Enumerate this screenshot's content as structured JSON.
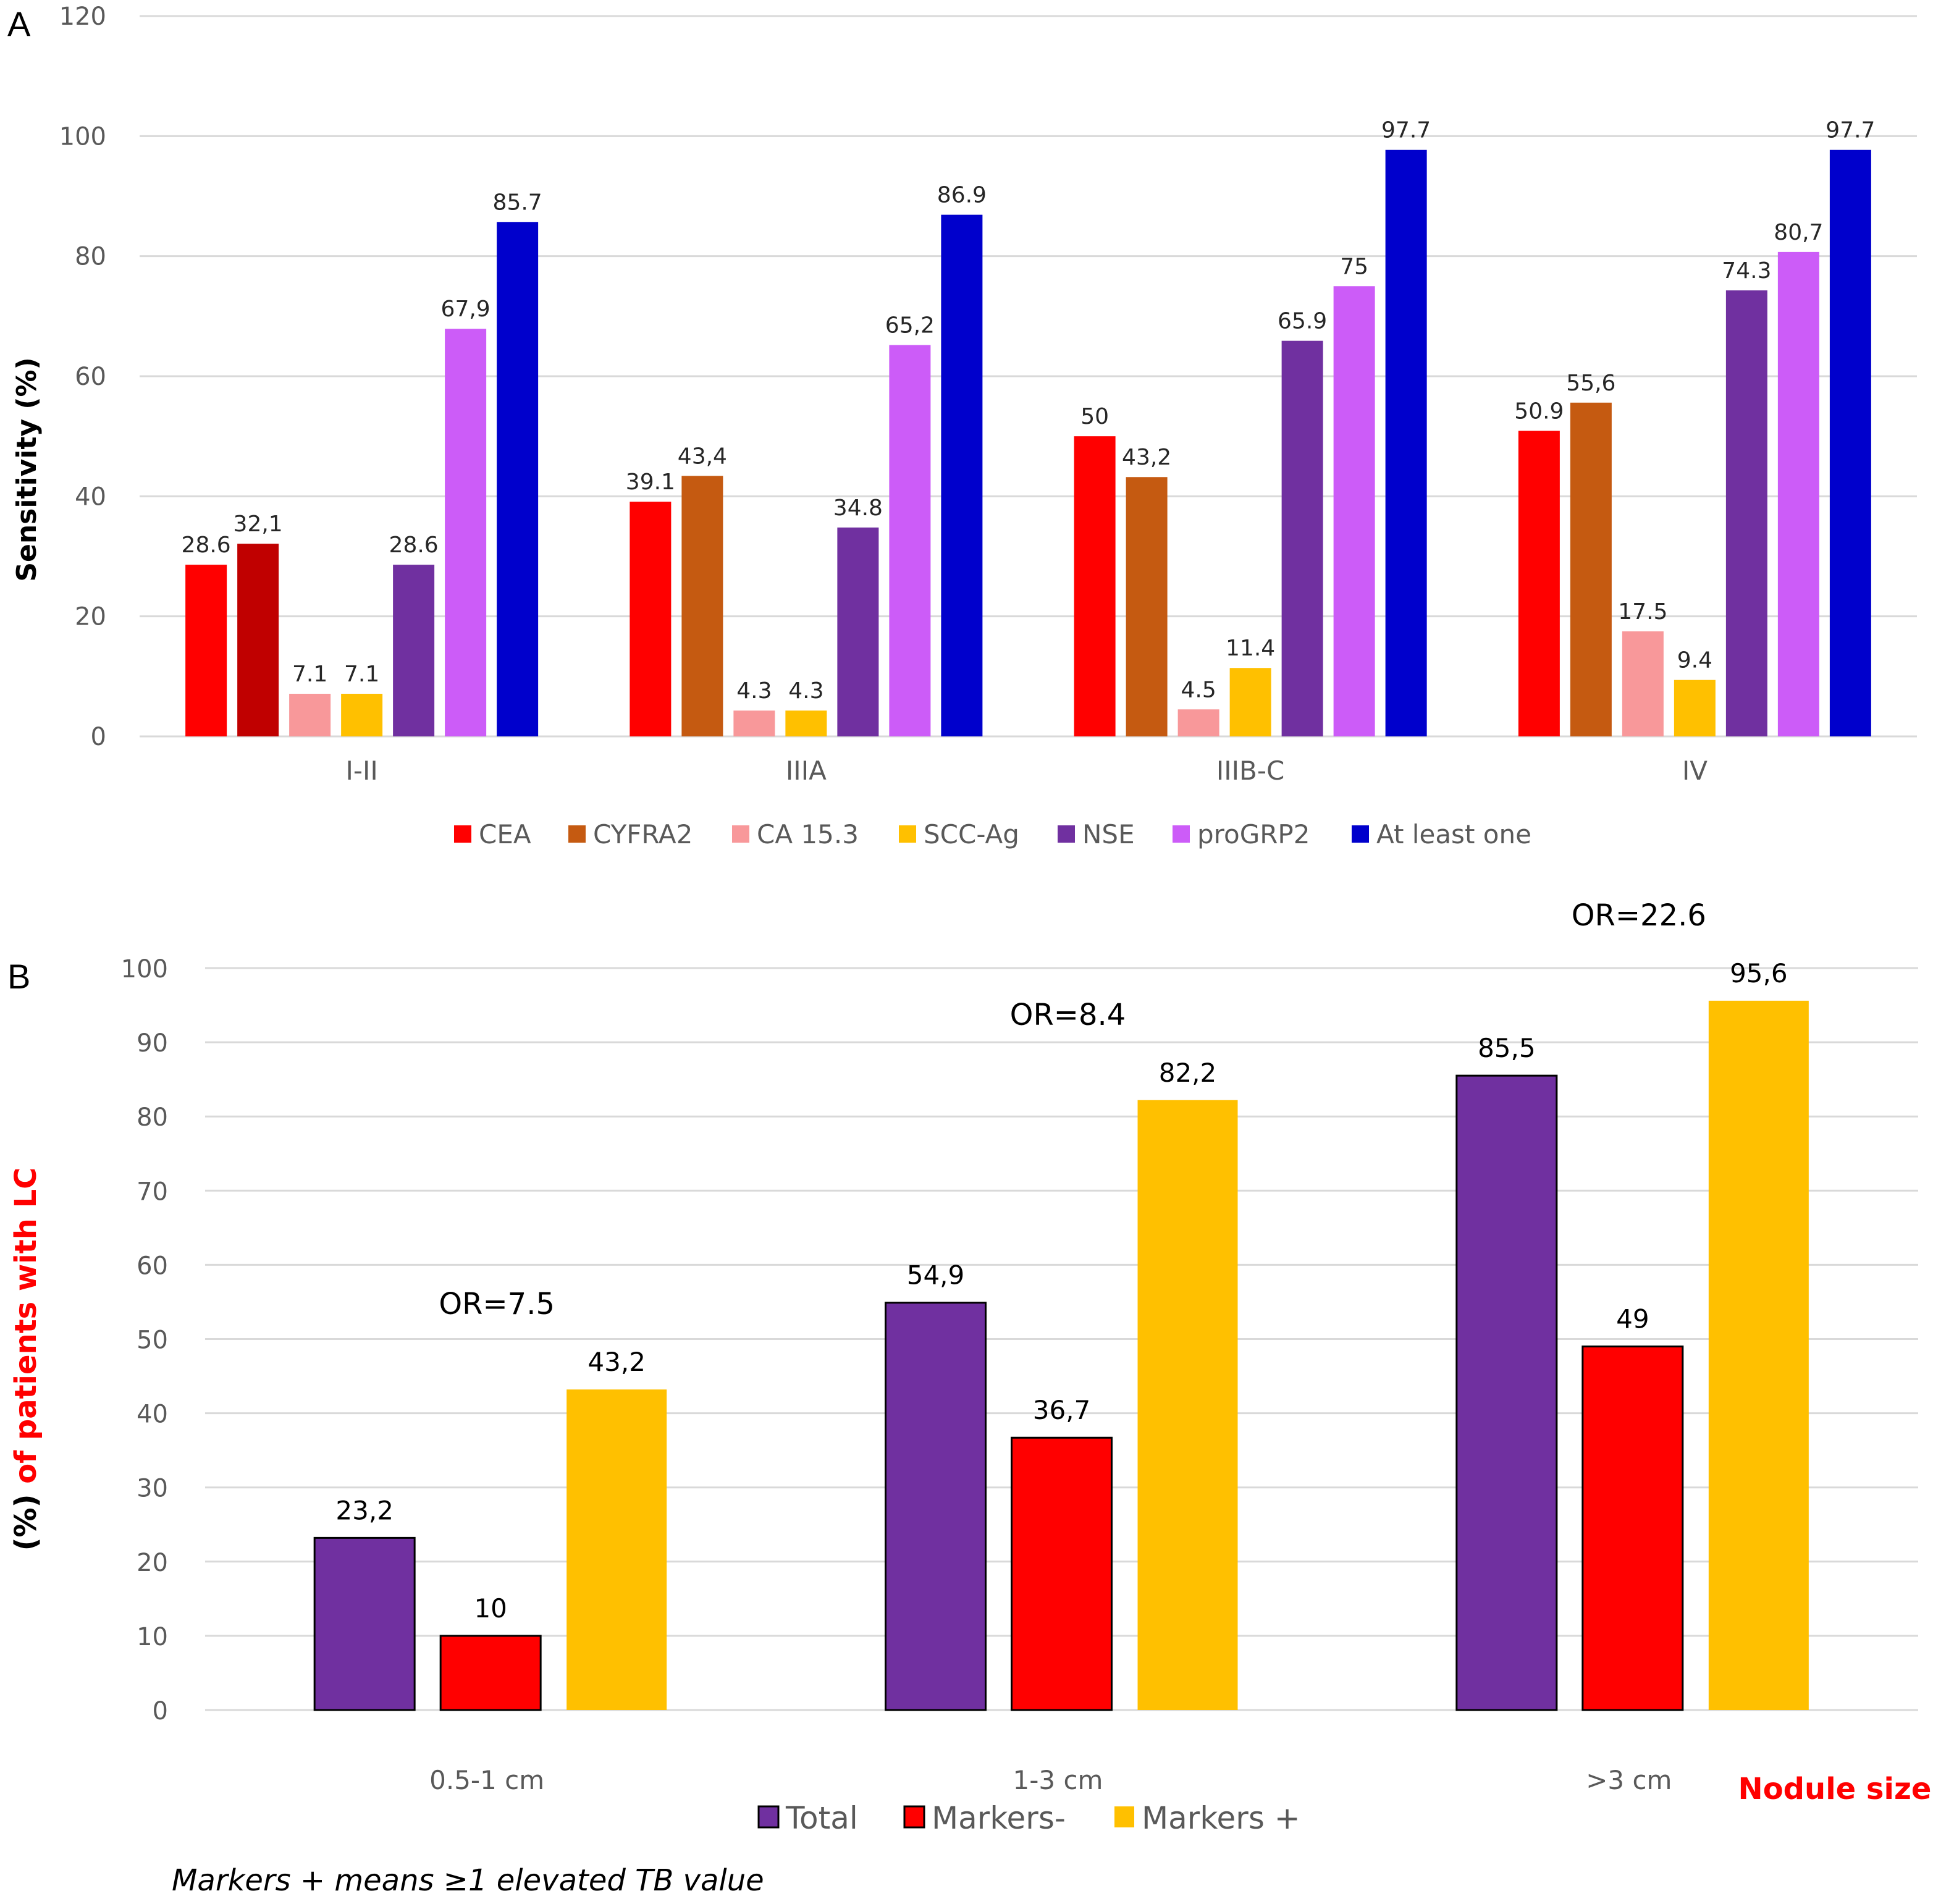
{
  "chart_data": [
    {
      "panel": "A",
      "type": "bar",
      "title": "",
      "xlabel": "",
      "ylabel": "Sensitivity (%)",
      "ylim": [
        0,
        120
      ],
      "yticks": [
        0,
        20,
        40,
        60,
        80,
        100,
        120
      ],
      "grid": true,
      "legend_position": "bottom",
      "categories": [
        "I-II",
        "IIIA",
        "IIIB-C",
        "IV"
      ],
      "series": [
        {
          "name": "CEA",
          "color": "#FF0000",
          "values": [
            28.6,
            39.1,
            50,
            50.9
          ],
          "labels": [
            "28.6",
            "39.1",
            "50",
            "50.9"
          ]
        },
        {
          "name": "CYFRA2",
          "color": "#C55A11",
          "point_colors": [
            "#C00000",
            "#C55A11",
            "#C55A11",
            "#C55A11"
          ],
          "values": [
            32.1,
            43.4,
            43.2,
            55.6
          ],
          "labels": [
            "32,1",
            "43,4",
            "43,2",
            "55,6"
          ]
        },
        {
          "name": "CA 15.3",
          "color": "#F8989A",
          "values": [
            7.1,
            4.3,
            4.5,
            17.5
          ],
          "labels": [
            "7.1",
            "4.3",
            "4.5",
            "17.5"
          ]
        },
        {
          "name": "SCC-Ag",
          "color": "#FFC000",
          "values": [
            7.1,
            4.3,
            11.4,
            9.4
          ],
          "labels": [
            "7.1",
            "4.3",
            "11.4",
            "9.4"
          ]
        },
        {
          "name": "NSE",
          "color": "#7030A0",
          "values": [
            28.6,
            34.8,
            65.9,
            74.3
          ],
          "labels": [
            "28.6",
            "34.8",
            "65.9",
            "74.3"
          ]
        },
        {
          "name": "proGRP2",
          "color": "#CC5CF8",
          "values": [
            67.9,
            65.2,
            75,
            80.7
          ],
          "labels": [
            "67,9",
            "65,2",
            "75",
            "80,7"
          ]
        },
        {
          "name": "At least one",
          "color": "#0000CC",
          "values": [
            85.7,
            86.9,
            97.7,
            97.7
          ],
          "labels": [
            "85.7",
            "86.9",
            "97.7",
            "97.7"
          ]
        }
      ]
    },
    {
      "panel": "B",
      "type": "bar",
      "title": "",
      "xlabel": "Nodule size",
      "ylabel_parts": [
        {
          "text": "(%) ",
          "color": "#000000"
        },
        {
          "text": "of patients with LC",
          "color": "#FF0000"
        }
      ],
      "ylim": [
        0,
        100
      ],
      "yticks": [
        0,
        10,
        20,
        30,
        40,
        50,
        60,
        70,
        80,
        90,
        100
      ],
      "grid": true,
      "legend_position": "bottom",
      "categories": [
        "0.5-1 cm",
        "1-3 cm",
        ">3 cm"
      ],
      "series": [
        {
          "name": "Total",
          "color": "#7030A0",
          "outlined": true,
          "values": [
            23.2,
            54.9,
            85.5
          ],
          "labels": [
            "23,2",
            "54,9",
            "85,5"
          ]
        },
        {
          "name": "Markers-",
          "color": "#FF0000",
          "outlined": true,
          "values": [
            10,
            36.7,
            49
          ],
          "labels": [
            "10",
            "36,7",
            "49"
          ]
        },
        {
          "name": "Markers +",
          "color": "#FFC000",
          "outlined": false,
          "values": [
            43.2,
            82.2,
            95.6
          ],
          "labels": [
            "43,2",
            "82,2",
            "95,6"
          ]
        }
      ],
      "annotations": [
        "OR=7.5",
        "OR=8.4",
        "OR=22.6"
      ],
      "footnote": "Markers + means ≥1 elevated TB value"
    }
  ],
  "panels": {
    "a_letter": "A",
    "b_letter": "B"
  }
}
